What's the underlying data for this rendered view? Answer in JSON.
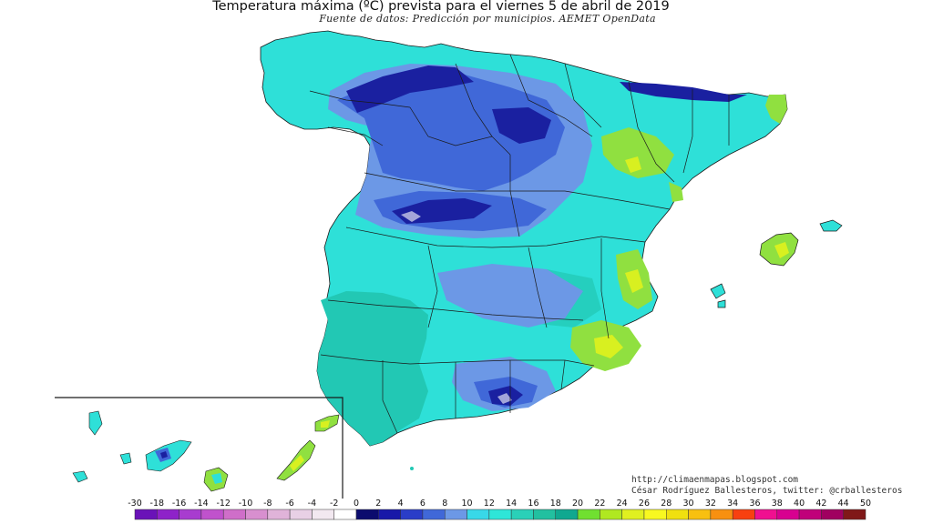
{
  "title": "Temperatura máxima (ºC) prevista para el viernes 5 de abril de 2019",
  "subtitle": "Fuente de datos: Predicción por municipios. AEMET OpenData",
  "credit_blog": "http://climaenmapas.blogspot.com",
  "credit_author": "César Rodríguez Ballesteros, twitter: @crballesteros",
  "legend": {
    "ticks": [
      "-30",
      "-18",
      "-16",
      "-14",
      "-12",
      "-10",
      "-8",
      "-6",
      "-4",
      "-2",
      "0",
      "2",
      "4",
      "6",
      "8",
      "10",
      "12",
      "14",
      "16",
      "18",
      "20",
      "22",
      "24",
      "26",
      "28",
      "30",
      "32",
      "34",
      "36",
      "38",
      "40",
      "42",
      "44",
      "50"
    ],
    "colors": [
      "#6a12b8",
      "#8e22c9",
      "#a83ccf",
      "#c052cc",
      "#cf6ec9",
      "#d88fcf",
      "#e0b3d9",
      "#e8d0e5",
      "#f2e8f0",
      "#ffffff",
      "#0b0b6e",
      "#1818a8",
      "#2a3dc8",
      "#4068d8",
      "#6c98e6",
      "#38d8e8",
      "#2ee6d8",
      "#2ad0b8",
      "#22c0a0",
      "#10a890",
      "#70e030",
      "#b0e820",
      "#e0f020",
      "#f8f820",
      "#f0e010",
      "#f8c010",
      "#f89010",
      "#f84010",
      "#f01090",
      "#d80090",
      "#c0007a",
      "#a00060",
      "#801818"
    ]
  },
  "map_colors": {
    "sea": "#ffffff",
    "land_base": "#2ee0d8",
    "south_west": "#22c8b4",
    "cold_plateau": "#6c98e6",
    "colder": "#4068d8",
    "coldest": "#1a20a0",
    "warm_coast": "#90e040",
    "warmest": "#d8f020",
    "border": "#1a1a1a"
  }
}
